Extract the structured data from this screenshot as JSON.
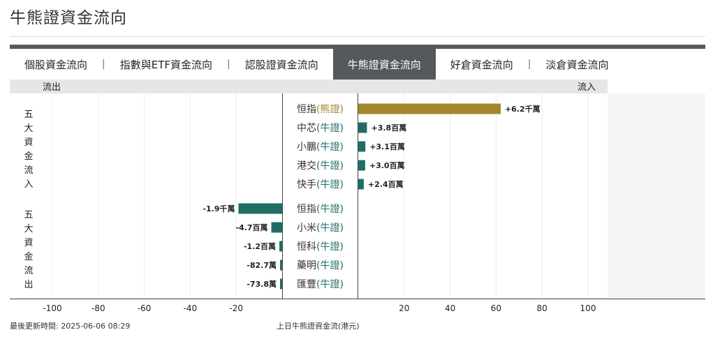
{
  "page": {
    "title": "牛熊證資金流向"
  },
  "tabs": [
    {
      "label": "個股資金流向",
      "active": false
    },
    {
      "label": "指數與ETF資金流向",
      "active": false
    },
    {
      "label": "認股證資金流向",
      "active": false
    },
    {
      "label": "牛熊證資金流向",
      "active": true
    },
    {
      "label": "好倉資金流向",
      "active": false
    },
    {
      "label": "淡倉資金流向",
      "active": false
    }
  ],
  "tab_separator": "|",
  "colors": {
    "inflow_top": "#a3862a",
    "bar": "#1e6e66",
    "bear_label": "#a3862a",
    "bull_label": "#1e6e66",
    "active_tab": "#55585c"
  },
  "chart_data": {
    "type": "bar",
    "orientation": "horizontal",
    "header_left": "流出",
    "header_right": "流入",
    "group_labels": [
      "五大資金流入",
      "五大資金流出"
    ],
    "x_ticks": [
      -100,
      -80,
      -60,
      -40,
      -20,
      20,
      40,
      60,
      80,
      100
    ],
    "xlim": [
      -100,
      100
    ],
    "inflow": [
      {
        "name": "恒指",
        "type": "熊證",
        "value": 62,
        "label": "+6.2千萬"
      },
      {
        "name": "中芯",
        "type": "牛證",
        "value": 3.8,
        "label": "+3.8百萬"
      },
      {
        "name": "小鵬",
        "type": "牛證",
        "value": 3.1,
        "label": "+3.1百萬"
      },
      {
        "name": "港交",
        "type": "牛證",
        "value": 3.0,
        "label": "+3.0百萬"
      },
      {
        "name": "快手",
        "type": "牛證",
        "value": 2.4,
        "label": "+2.4百萬"
      }
    ],
    "outflow": [
      {
        "name": "恒指",
        "type": "牛證",
        "value": -19,
        "label": "-1.9千萬"
      },
      {
        "name": "小米",
        "type": "牛證",
        "value": -4.7,
        "label": "-4.7百萬"
      },
      {
        "name": "恒科",
        "type": "牛證",
        "value": -1.2,
        "label": "-1.2百萬"
      },
      {
        "name": "藥明",
        "type": "牛證",
        "value": -0.827,
        "label": "-82.7萬"
      },
      {
        "name": "匯豐",
        "type": "牛證",
        "value": -0.738,
        "label": "-73.8萬"
      }
    ],
    "caption": "上日牛熊證資金流(港元)"
  },
  "footer": {
    "update_time": "最後更新時間: 2025-06-06 08:29"
  }
}
